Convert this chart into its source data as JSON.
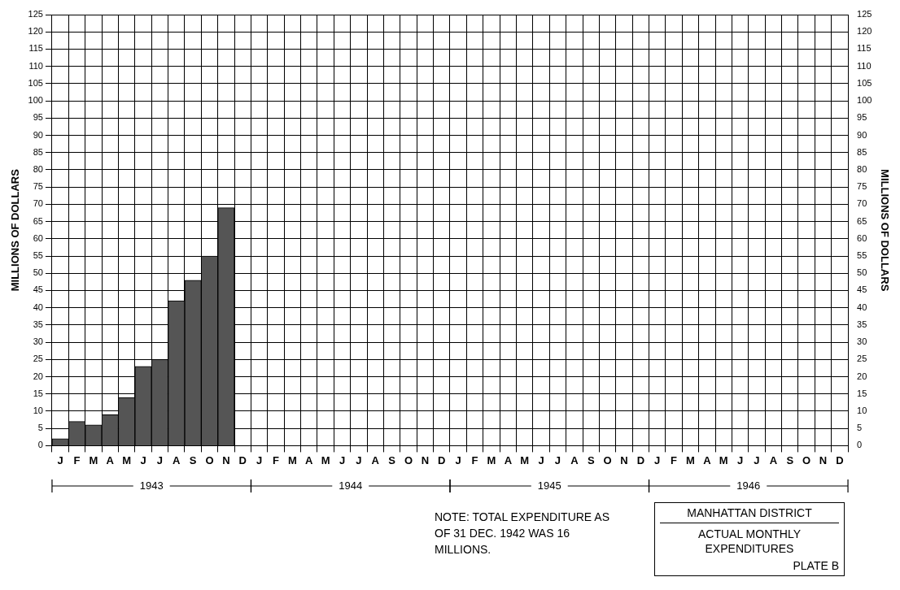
{
  "chart_data": {
    "type": "bar",
    "title": "ACTUAL MONTHLY EXPENDITURES",
    "subtitle": "MANHATTAN DISTRICT",
    "ylabel": "MILLIONS OF DOLLARS",
    "y2label": "MILLIONS OF DOLLARS",
    "categories": [
      "J",
      "F",
      "M",
      "A",
      "M",
      "J",
      "J",
      "A",
      "S",
      "O",
      "N",
      "D",
      "J",
      "F",
      "M",
      "A",
      "M",
      "J",
      "J",
      "A",
      "S",
      "O",
      "N",
      "D",
      "J",
      "F",
      "M",
      "A",
      "M",
      "J",
      "J",
      "A",
      "S",
      "O",
      "N",
      "D",
      "J",
      "F",
      "M",
      "A",
      "M",
      "J",
      "J",
      "A",
      "S",
      "O",
      "N",
      "D"
    ],
    "values": [
      2,
      7,
      6,
      9,
      14,
      23,
      25,
      42,
      48,
      55,
      69,
      null,
      null,
      null,
      null,
      null,
      null,
      null,
      null,
      null,
      null,
      null,
      null,
      null,
      null,
      null,
      null,
      null,
      null,
      null,
      null,
      null,
      null,
      null,
      null,
      null,
      null,
      null,
      null,
      null,
      null,
      null,
      null,
      null,
      null,
      null,
      null,
      null
    ],
    "color": "#555555",
    "ylim": [
      0,
      125
    ],
    "yticks": [
      0,
      5,
      10,
      15,
      20,
      25,
      30,
      35,
      40,
      45,
      50,
      55,
      60,
      65,
      70,
      75,
      80,
      85,
      90,
      95,
      100,
      105,
      110,
      115,
      120,
      125
    ],
    "y2lim": [
      0,
      125
    ],
    "y2ticks": [
      0,
      5,
      10,
      15,
      20,
      25,
      30,
      35,
      40,
      45,
      50,
      55,
      60,
      65,
      70,
      75,
      80,
      85,
      90,
      95,
      100,
      105,
      110,
      115,
      120,
      125
    ],
    "grid": true,
    "legend": false,
    "annotations": [
      "1943",
      "1944",
      "1945",
      "1946",
      "NOTE: TOTAL EXPENDITURE AS OF 31 DEC. 1942 WAS 16 MILLIONS.",
      "PLATE B"
    ]
  }
}
